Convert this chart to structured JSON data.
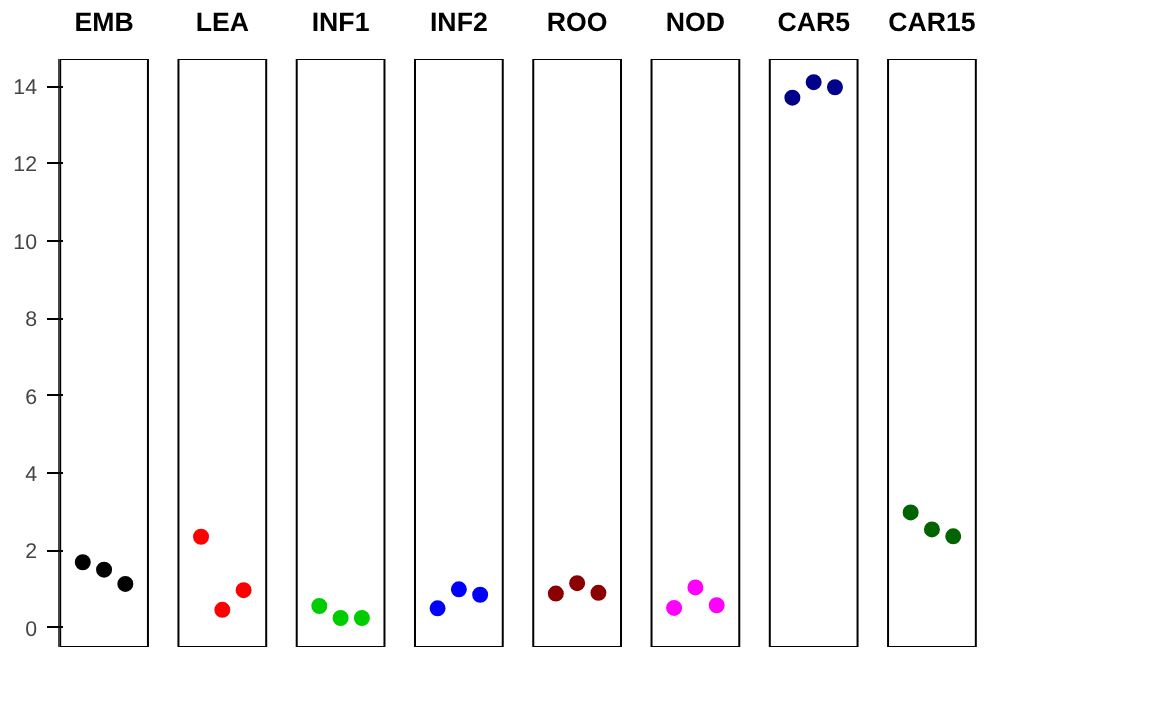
{
  "chart_data": {
    "type": "scatter",
    "categories": [
      "EMB",
      "LEA",
      "INF1",
      "INF2",
      "ROO",
      "NOD",
      "CAR5",
      "CAR15"
    ],
    "series": [
      {
        "colors": [
          "#000000",
          "#ff0000",
          "#00cd00",
          "#0000ff",
          "#8b0000",
          "#ff00ff",
          "#00008b",
          "#006400"
        ],
        "values": [
          1.69,
          2.35,
          0.56,
          0.5,
          0.88,
          0.51,
          13.7,
          2.98
        ]
      },
      {
        "colors": [
          "#000000",
          "#ff0000",
          "#00cd00",
          "#0000ff",
          "#8b0000",
          "#ff00ff",
          "#00008b",
          "#006400"
        ],
        "values": [
          1.5,
          0.46,
          0.25,
          0.99,
          1.15,
          1.04,
          14.1,
          2.54
        ]
      },
      {
        "colors": [
          "#000000",
          "#ff0000",
          "#00cd00",
          "#0000ff",
          "#8b0000",
          "#ff00ff",
          "#00008b",
          "#006400"
        ],
        "values": [
          1.13,
          0.97,
          0.25,
          0.85,
          0.9,
          0.58,
          13.97,
          2.36
        ]
      }
    ],
    "ylim": [
      -0.5,
      14.7
    ],
    "yticks": [
      0,
      2,
      4,
      6,
      8,
      10,
      12,
      14
    ],
    "marker": "circle"
  }
}
